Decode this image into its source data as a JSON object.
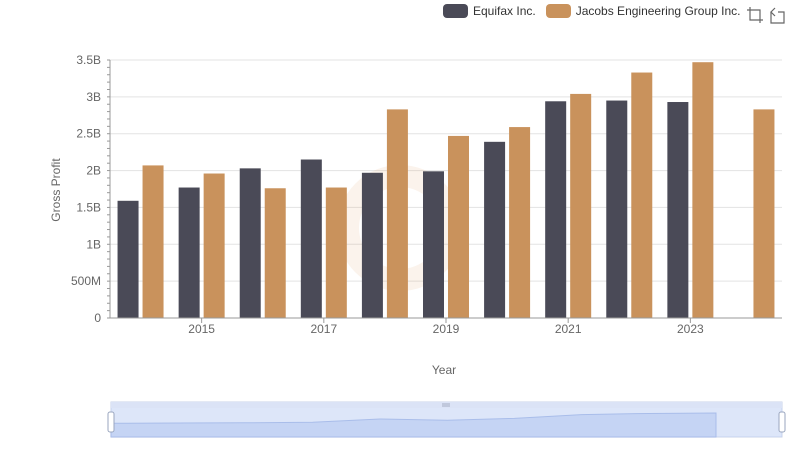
{
  "legend": {
    "items": [
      {
        "label": "Equifax Inc.",
        "color": "#4a4a57"
      },
      {
        "label": "Jacobs Engineering Group Inc.",
        "color": "#c9925c"
      }
    ]
  },
  "toolbox": {
    "icons": [
      "zoom-icon",
      "restore-icon"
    ]
  },
  "chart_data": {
    "type": "bar",
    "x": [
      2014,
      2015,
      2016,
      2017,
      2018,
      2019,
      2020,
      2021,
      2022,
      2023,
      2024
    ],
    "x_tick_labels": [
      "2015",
      "2017",
      "2019",
      "2021",
      "2023"
    ],
    "y_tick_labels": [
      "0",
      "500M",
      "1B",
      "1.5B",
      "2B",
      "2.5B",
      "3B",
      "3.5B"
    ],
    "xlabel": "Year",
    "ylabel": "Gross Profit",
    "ylim": [
      0,
      3500000000
    ],
    "grid": true,
    "legend_position": "top-right",
    "series": [
      {
        "name": "Equifax Inc.",
        "color": "#4a4a57",
        "values": [
          1590000000,
          1770000000,
          2030000000,
          2150000000,
          1970000000,
          1990000000,
          2390000000,
          2940000000,
          2950000000,
          2930000000,
          null
        ]
      },
      {
        "name": "Jacobs Engineering Group Inc.",
        "color": "#c9925c",
        "values": [
          2070000000,
          1960000000,
          1760000000,
          1770000000,
          2830000000,
          2470000000,
          2590000000,
          3040000000,
          3330000000,
          3470000000,
          2830000000
        ]
      }
    ]
  }
}
